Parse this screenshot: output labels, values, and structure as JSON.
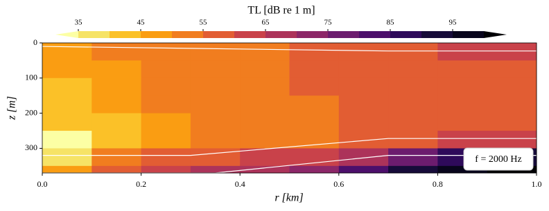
{
  "chart_data": {
    "type": "heatmap",
    "xlabel": "r [km]",
    "ylabel": "z [m]",
    "xlim": [
      0,
      1
    ],
    "ylim": [
      0,
      370
    ],
    "y_inverted": true,
    "xticks": [
      {
        "value": 0,
        "label": "0.0"
      },
      0.2,
      0.4,
      0.6,
      0.8,
      {
        "value": 1,
        "label": "1.0"
      }
    ],
    "yticks": [
      0,
      100,
      200,
      300
    ],
    "xbins": [
      0,
      0.1,
      0.2,
      0.3,
      0.4,
      0.5,
      0.6,
      0.7,
      0.8,
      0.9,
      1
    ],
    "ybins": [
      0,
      50,
      100,
      150,
      200,
      250,
      300,
      350,
      370
    ],
    "values": [
      [
        47,
        50,
        52,
        53,
        54,
        55,
        56,
        58,
        60,
        62
      ],
      [
        45,
        49,
        52,
        53,
        54,
        55,
        55,
        56,
        57,
        58
      ],
      [
        44,
        48,
        51,
        53,
        54,
        55,
        55,
        56,
        56,
        57
      ],
      [
        43,
        46,
        50,
        52,
        53,
        54,
        55,
        55,
        56,
        56
      ],
      [
        40,
        44,
        49,
        51,
        53,
        54,
        55,
        55,
        56,
        56
      ],
      [
        34,
        43,
        48,
        51,
        53,
        54,
        55,
        57,
        62,
        64
      ],
      [
        36,
        50,
        55,
        58,
        60,
        63,
        68,
        75,
        88,
        92
      ],
      [
        45,
        58,
        62,
        65,
        68,
        72,
        80,
        90,
        98,
        100
      ]
    ],
    "lines": [
      {
        "x": [
          0,
          0.7,
          1
        ],
        "z": [
          10,
          23,
          23
        ],
        "color": "#ffffff"
      },
      {
        "x": [
          0,
          0.3,
          0.7,
          1
        ],
        "z": [
          320,
          320,
          272,
          272
        ],
        "color": "#ffffff"
      },
      {
        "x": [
          0,
          0.35,
          0.7,
          1
        ],
        "z": [
          370,
          370,
          320,
          320
        ],
        "color": "#ffffff"
      }
    ],
    "colorbar": {
      "label": "TL [dB re 1 m]",
      "ticks": [
        35,
        45,
        55,
        65,
        75,
        85,
        95
      ],
      "levels": [
        35,
        40,
        45,
        50,
        55,
        60,
        65,
        70,
        75,
        80,
        85,
        90,
        95,
        100
      ],
      "colors": [
        "#fcffa4",
        "#f6e366",
        "#fbc128",
        "#fa9d12",
        "#f17d1f",
        "#e25d33",
        "#c9424a",
        "#ac335a",
        "#8c2768",
        "#6c1c6e",
        "#4c0f6b",
        "#2e0a5a",
        "#160b39",
        "#08051c",
        "#000004"
      ]
    },
    "annotation": "f = 2000 Hz"
  }
}
